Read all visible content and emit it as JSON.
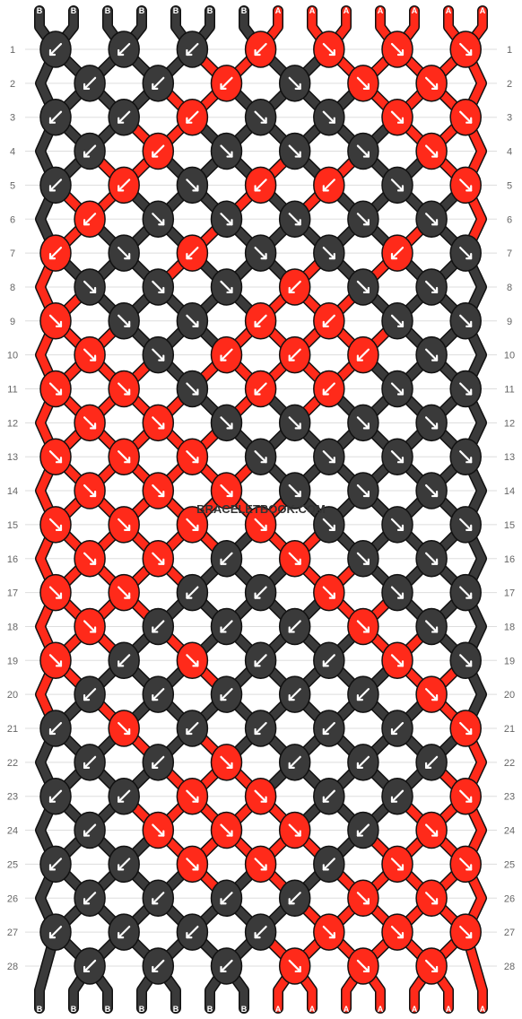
{
  "watermark": "BRACELETBOOK.COM",
  "colors": {
    "A": "#ff2a1a",
    "B": "#3a3a3a",
    "outline": "#111111",
    "arrow": "#ffffff",
    "rule": "#dddddd",
    "label": "#666666"
  },
  "strands_top": [
    "B",
    "B",
    "B",
    "B",
    "B",
    "B",
    "B",
    "A",
    "A",
    "A",
    "A",
    "A",
    "A",
    "A"
  ],
  "strands_bottom": [
    "B",
    "B",
    "B",
    "B",
    "B",
    "B",
    "B",
    "A",
    "A",
    "A",
    "A",
    "A",
    "A",
    "A"
  ],
  "row_labels": [
    "1",
    "2",
    "3",
    "4",
    "5",
    "6",
    "7",
    "8",
    "9",
    "10",
    "11",
    "12",
    "13",
    "14",
    "15",
    "16",
    "17",
    "18",
    "19",
    "20",
    "21",
    "22",
    "23",
    "24",
    "25",
    "26",
    "27",
    "28"
  ],
  "knots": [
    {
      "row": 1,
      "col": 0,
      "color": "B",
      "dir": "sw"
    },
    {
      "row": 1,
      "col": 2,
      "color": "B",
      "dir": "sw"
    },
    {
      "row": 1,
      "col": 4,
      "color": "B",
      "dir": "sw"
    },
    {
      "row": 1,
      "col": 6,
      "color": "A",
      "dir": "sw"
    },
    {
      "row": 1,
      "col": 8,
      "color": "A",
      "dir": "se"
    },
    {
      "row": 1,
      "col": 10,
      "color": "A",
      "dir": "se"
    },
    {
      "row": 1,
      "col": 12,
      "color": "A",
      "dir": "se"
    },
    {
      "row": 2,
      "col": 1,
      "color": "B",
      "dir": "sw"
    },
    {
      "row": 2,
      "col": 3,
      "color": "B",
      "dir": "sw"
    },
    {
      "row": 2,
      "col": 5,
      "color": "A",
      "dir": "sw"
    },
    {
      "row": 2,
      "col": 7,
      "color": "B",
      "dir": "se"
    },
    {
      "row": 2,
      "col": 9,
      "color": "A",
      "dir": "se"
    },
    {
      "row": 2,
      "col": 11,
      "color": "A",
      "dir": "se"
    },
    {
      "row": 3,
      "col": 0,
      "color": "B",
      "dir": "sw"
    },
    {
      "row": 3,
      "col": 2,
      "color": "B",
      "dir": "sw"
    },
    {
      "row": 3,
      "col": 4,
      "color": "A",
      "dir": "sw"
    },
    {
      "row": 3,
      "col": 6,
      "color": "B",
      "dir": "se"
    },
    {
      "row": 3,
      "col": 8,
      "color": "B",
      "dir": "se"
    },
    {
      "row": 3,
      "col": 10,
      "color": "A",
      "dir": "se"
    },
    {
      "row": 3,
      "col": 12,
      "color": "A",
      "dir": "se"
    },
    {
      "row": 4,
      "col": 1,
      "color": "B",
      "dir": "sw"
    },
    {
      "row": 4,
      "col": 3,
      "color": "A",
      "dir": "sw"
    },
    {
      "row": 4,
      "col": 5,
      "color": "B",
      "dir": "se"
    },
    {
      "row": 4,
      "col": 7,
      "color": "B",
      "dir": "se"
    },
    {
      "row": 4,
      "col": 9,
      "color": "B",
      "dir": "se"
    },
    {
      "row": 4,
      "col": 11,
      "color": "A",
      "dir": "se"
    },
    {
      "row": 5,
      "col": 0,
      "color": "B",
      "dir": "sw"
    },
    {
      "row": 5,
      "col": 2,
      "color": "A",
      "dir": "sw"
    },
    {
      "row": 5,
      "col": 4,
      "color": "B",
      "dir": "se"
    },
    {
      "row": 5,
      "col": 6,
      "color": "A",
      "dir": "sw"
    },
    {
      "row": 5,
      "col": 8,
      "color": "A",
      "dir": "sw"
    },
    {
      "row": 5,
      "col": 10,
      "color": "B",
      "dir": "se"
    },
    {
      "row": 5,
      "col": 12,
      "color": "A",
      "dir": "se"
    },
    {
      "row": 6,
      "col": 1,
      "color": "A",
      "dir": "sw"
    },
    {
      "row": 6,
      "col": 3,
      "color": "B",
      "dir": "se"
    },
    {
      "row": 6,
      "col": 5,
      "color": "B",
      "dir": "se"
    },
    {
      "row": 6,
      "col": 7,
      "color": "B",
      "dir": "se"
    },
    {
      "row": 6,
      "col": 9,
      "color": "B",
      "dir": "se"
    },
    {
      "row": 6,
      "col": 11,
      "color": "B",
      "dir": "se"
    },
    {
      "row": 7,
      "col": 0,
      "color": "A",
      "dir": "sw"
    },
    {
      "row": 7,
      "col": 2,
      "color": "B",
      "dir": "se"
    },
    {
      "row": 7,
      "col": 4,
      "color": "A",
      "dir": "sw"
    },
    {
      "row": 7,
      "col": 6,
      "color": "B",
      "dir": "se"
    },
    {
      "row": 7,
      "col": 8,
      "color": "B",
      "dir": "se"
    },
    {
      "row": 7,
      "col": 10,
      "color": "A",
      "dir": "sw"
    },
    {
      "row": 7,
      "col": 12,
      "color": "B",
      "dir": "se"
    },
    {
      "row": 8,
      "col": 1,
      "color": "B",
      "dir": "se"
    },
    {
      "row": 8,
      "col": 3,
      "color": "B",
      "dir": "se"
    },
    {
      "row": 8,
      "col": 5,
      "color": "B",
      "dir": "se"
    },
    {
      "row": 8,
      "col": 7,
      "color": "A",
      "dir": "sw"
    },
    {
      "row": 8,
      "col": 9,
      "color": "B",
      "dir": "se"
    },
    {
      "row": 8,
      "col": 11,
      "color": "B",
      "dir": "se"
    },
    {
      "row": 9,
      "col": 0,
      "color": "A",
      "dir": "se"
    },
    {
      "row": 9,
      "col": 2,
      "color": "B",
      "dir": "se"
    },
    {
      "row": 9,
      "col": 4,
      "color": "B",
      "dir": "se"
    },
    {
      "row": 9,
      "col": 6,
      "color": "A",
      "dir": "sw"
    },
    {
      "row": 9,
      "col": 8,
      "color": "A",
      "dir": "sw"
    },
    {
      "row": 9,
      "col": 10,
      "color": "B",
      "dir": "se"
    },
    {
      "row": 9,
      "col": 12,
      "color": "B",
      "dir": "se"
    },
    {
      "row": 10,
      "col": 1,
      "color": "A",
      "dir": "se"
    },
    {
      "row": 10,
      "col": 3,
      "color": "B",
      "dir": "se"
    },
    {
      "row": 10,
      "col": 5,
      "color": "A",
      "dir": "sw"
    },
    {
      "row": 10,
      "col": 7,
      "color": "A",
      "dir": "sw"
    },
    {
      "row": 10,
      "col": 9,
      "color": "A",
      "dir": "sw"
    },
    {
      "row": 10,
      "col": 11,
      "color": "B",
      "dir": "se"
    },
    {
      "row": 11,
      "col": 0,
      "color": "A",
      "dir": "se"
    },
    {
      "row": 11,
      "col": 2,
      "color": "A",
      "dir": "se"
    },
    {
      "row": 11,
      "col": 4,
      "color": "B",
      "dir": "se"
    },
    {
      "row": 11,
      "col": 6,
      "color": "A",
      "dir": "sw"
    },
    {
      "row": 11,
      "col": 8,
      "color": "A",
      "dir": "sw"
    },
    {
      "row": 11,
      "col": 10,
      "color": "B",
      "dir": "se"
    },
    {
      "row": 11,
      "col": 12,
      "color": "B",
      "dir": "se"
    },
    {
      "row": 12,
      "col": 1,
      "color": "A",
      "dir": "se"
    },
    {
      "row": 12,
      "col": 3,
      "color": "A",
      "dir": "se"
    },
    {
      "row": 12,
      "col": 5,
      "color": "B",
      "dir": "se"
    },
    {
      "row": 12,
      "col": 7,
      "color": "B",
      "dir": "se"
    },
    {
      "row": 12,
      "col": 9,
      "color": "B",
      "dir": "se"
    },
    {
      "row": 12,
      "col": 11,
      "color": "B",
      "dir": "se"
    },
    {
      "row": 13,
      "col": 0,
      "color": "A",
      "dir": "se"
    },
    {
      "row": 13,
      "col": 2,
      "color": "A",
      "dir": "se"
    },
    {
      "row": 13,
      "col": 4,
      "color": "A",
      "dir": "se"
    },
    {
      "row": 13,
      "col": 6,
      "color": "B",
      "dir": "se"
    },
    {
      "row": 13,
      "col": 8,
      "color": "B",
      "dir": "se"
    },
    {
      "row": 13,
      "col": 10,
      "color": "B",
      "dir": "se"
    },
    {
      "row": 13,
      "col": 12,
      "color": "B",
      "dir": "se"
    },
    {
      "row": 14,
      "col": 1,
      "color": "A",
      "dir": "se"
    },
    {
      "row": 14,
      "col": 3,
      "color": "A",
      "dir": "se"
    },
    {
      "row": 14,
      "col": 5,
      "color": "A",
      "dir": "se"
    },
    {
      "row": 14,
      "col": 7,
      "color": "B",
      "dir": "se"
    },
    {
      "row": 14,
      "col": 9,
      "color": "B",
      "dir": "se"
    },
    {
      "row": 14,
      "col": 11,
      "color": "B",
      "dir": "se"
    },
    {
      "row": 15,
      "col": 0,
      "color": "A",
      "dir": "se"
    },
    {
      "row": 15,
      "col": 2,
      "color": "A",
      "dir": "se"
    },
    {
      "row": 15,
      "col": 4,
      "color": "A",
      "dir": "se"
    },
    {
      "row": 15,
      "col": 6,
      "color": "A",
      "dir": "se"
    },
    {
      "row": 15,
      "col": 8,
      "color": "B",
      "dir": "se"
    },
    {
      "row": 15,
      "col": 10,
      "color": "B",
      "dir": "se"
    },
    {
      "row": 15,
      "col": 12,
      "color": "B",
      "dir": "se"
    },
    {
      "row": 16,
      "col": 1,
      "color": "A",
      "dir": "se"
    },
    {
      "row": 16,
      "col": 3,
      "color": "A",
      "dir": "se"
    },
    {
      "row": 16,
      "col": 5,
      "color": "B",
      "dir": "sw"
    },
    {
      "row": 16,
      "col": 7,
      "color": "A",
      "dir": "se"
    },
    {
      "row": 16,
      "col": 9,
      "color": "B",
      "dir": "se"
    },
    {
      "row": 16,
      "col": 11,
      "color": "B",
      "dir": "se"
    },
    {
      "row": 17,
      "col": 0,
      "color": "A",
      "dir": "se"
    },
    {
      "row": 17,
      "col": 2,
      "color": "A",
      "dir": "se"
    },
    {
      "row": 17,
      "col": 4,
      "color": "B",
      "dir": "sw"
    },
    {
      "row": 17,
      "col": 6,
      "color": "B",
      "dir": "sw"
    },
    {
      "row": 17,
      "col": 8,
      "color": "A",
      "dir": "se"
    },
    {
      "row": 17,
      "col": 10,
      "color": "B",
      "dir": "se"
    },
    {
      "row": 17,
      "col": 12,
      "color": "B",
      "dir": "se"
    },
    {
      "row": 18,
      "col": 1,
      "color": "A",
      "dir": "se"
    },
    {
      "row": 18,
      "col": 3,
      "color": "B",
      "dir": "sw"
    },
    {
      "row": 18,
      "col": 5,
      "color": "B",
      "dir": "sw"
    },
    {
      "row": 18,
      "col": 7,
      "color": "B",
      "dir": "sw"
    },
    {
      "row": 18,
      "col": 9,
      "color": "A",
      "dir": "se"
    },
    {
      "row": 18,
      "col": 11,
      "color": "B",
      "dir": "se"
    },
    {
      "row": 19,
      "col": 0,
      "color": "A",
      "dir": "se"
    },
    {
      "row": 19,
      "col": 2,
      "color": "B",
      "dir": "sw"
    },
    {
      "row": 19,
      "col": 4,
      "color": "A",
      "dir": "se"
    },
    {
      "row": 19,
      "col": 6,
      "color": "B",
      "dir": "sw"
    },
    {
      "row": 19,
      "col": 8,
      "color": "B",
      "dir": "sw"
    },
    {
      "row": 19,
      "col": 10,
      "color": "A",
      "dir": "se"
    },
    {
      "row": 19,
      "col": 12,
      "color": "B",
      "dir": "se"
    },
    {
      "row": 20,
      "col": 1,
      "color": "B",
      "dir": "sw"
    },
    {
      "row": 20,
      "col": 3,
      "color": "B",
      "dir": "sw"
    },
    {
      "row": 20,
      "col": 5,
      "color": "B",
      "dir": "sw"
    },
    {
      "row": 20,
      "col": 7,
      "color": "B",
      "dir": "sw"
    },
    {
      "row": 20,
      "col": 9,
      "color": "B",
      "dir": "sw"
    },
    {
      "row": 20,
      "col": 11,
      "color": "A",
      "dir": "se"
    },
    {
      "row": 21,
      "col": 0,
      "color": "B",
      "dir": "sw"
    },
    {
      "row": 21,
      "col": 2,
      "color": "A",
      "dir": "se"
    },
    {
      "row": 21,
      "col": 4,
      "color": "B",
      "dir": "sw"
    },
    {
      "row": 21,
      "col": 6,
      "color": "B",
      "dir": "sw"
    },
    {
      "row": 21,
      "col": 8,
      "color": "B",
      "dir": "sw"
    },
    {
      "row": 21,
      "col": 10,
      "color": "B",
      "dir": "sw"
    },
    {
      "row": 21,
      "col": 12,
      "color": "A",
      "dir": "se"
    },
    {
      "row": 22,
      "col": 1,
      "color": "B",
      "dir": "sw"
    },
    {
      "row": 22,
      "col": 3,
      "color": "B",
      "dir": "sw"
    },
    {
      "row": 22,
      "col": 5,
      "color": "A",
      "dir": "se"
    },
    {
      "row": 22,
      "col": 7,
      "color": "B",
      "dir": "sw"
    },
    {
      "row": 22,
      "col": 9,
      "color": "B",
      "dir": "sw"
    },
    {
      "row": 22,
      "col": 11,
      "color": "B",
      "dir": "sw"
    },
    {
      "row": 23,
      "col": 0,
      "color": "B",
      "dir": "sw"
    },
    {
      "row": 23,
      "col": 2,
      "color": "B",
      "dir": "sw"
    },
    {
      "row": 23,
      "col": 4,
      "color": "A",
      "dir": "se"
    },
    {
      "row": 23,
      "col": 6,
      "color": "A",
      "dir": "se"
    },
    {
      "row": 23,
      "col": 8,
      "color": "B",
      "dir": "sw"
    },
    {
      "row": 23,
      "col": 10,
      "color": "B",
      "dir": "sw"
    },
    {
      "row": 23,
      "col": 12,
      "color": "A",
      "dir": "se"
    },
    {
      "row": 24,
      "col": 1,
      "color": "B",
      "dir": "sw"
    },
    {
      "row": 24,
      "col": 3,
      "color": "A",
      "dir": "se"
    },
    {
      "row": 24,
      "col": 5,
      "color": "A",
      "dir": "se"
    },
    {
      "row": 24,
      "col": 7,
      "color": "A",
      "dir": "se"
    },
    {
      "row": 24,
      "col": 9,
      "color": "B",
      "dir": "sw"
    },
    {
      "row": 24,
      "col": 11,
      "color": "A",
      "dir": "se"
    },
    {
      "row": 25,
      "col": 0,
      "color": "B",
      "dir": "sw"
    },
    {
      "row": 25,
      "col": 2,
      "color": "B",
      "dir": "sw"
    },
    {
      "row": 25,
      "col": 4,
      "color": "A",
      "dir": "se"
    },
    {
      "row": 25,
      "col": 6,
      "color": "A",
      "dir": "se"
    },
    {
      "row": 25,
      "col": 8,
      "color": "B",
      "dir": "sw"
    },
    {
      "row": 25,
      "col": 10,
      "color": "A",
      "dir": "se"
    },
    {
      "row": 25,
      "col": 12,
      "color": "A",
      "dir": "se"
    },
    {
      "row": 26,
      "col": 1,
      "color": "B",
      "dir": "sw"
    },
    {
      "row": 26,
      "col": 3,
      "color": "B",
      "dir": "sw"
    },
    {
      "row": 26,
      "col": 5,
      "color": "B",
      "dir": "sw"
    },
    {
      "row": 26,
      "col": 7,
      "color": "B",
      "dir": "sw"
    },
    {
      "row": 26,
      "col": 9,
      "color": "A",
      "dir": "se"
    },
    {
      "row": 26,
      "col": 11,
      "color": "A",
      "dir": "se"
    },
    {
      "row": 27,
      "col": 0,
      "color": "B",
      "dir": "sw"
    },
    {
      "row": 27,
      "col": 2,
      "color": "B",
      "dir": "sw"
    },
    {
      "row": 27,
      "col": 4,
      "color": "B",
      "dir": "sw"
    },
    {
      "row": 27,
      "col": 6,
      "color": "B",
      "dir": "sw"
    },
    {
      "row": 27,
      "col": 8,
      "color": "A",
      "dir": "se"
    },
    {
      "row": 27,
      "col": 10,
      "color": "A",
      "dir": "se"
    },
    {
      "row": 27,
      "col": 12,
      "color": "A",
      "dir": "se"
    },
    {
      "row": 28,
      "col": 1,
      "color": "B",
      "dir": "sw"
    },
    {
      "row": 28,
      "col": 3,
      "color": "B",
      "dir": "sw"
    },
    {
      "row": 28,
      "col": 5,
      "color": "B",
      "dir": "sw"
    },
    {
      "row": 28,
      "col": 7,
      "color": "A",
      "dir": "se"
    },
    {
      "row": 28,
      "col": 9,
      "color": "A",
      "dir": "se"
    },
    {
      "row": 28,
      "col": 11,
      "color": "A",
      "dir": "se"
    }
  ]
}
